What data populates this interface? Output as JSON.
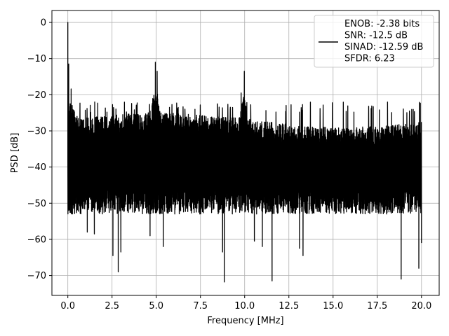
{
  "chart_data": {
    "type": "line",
    "title": "",
    "xlabel": "Frequency [MHz]",
    "ylabel": "PSD [dB]",
    "xlim": [
      -0.9,
      21.0
    ],
    "ylim": [
      -75.5,
      3.3
    ],
    "xticks": [
      0.0,
      2.5,
      5.0,
      7.5,
      10.0,
      12.5,
      15.0,
      17.5,
      20.0
    ],
    "xtick_labels": [
      "0.0",
      "2.5",
      "5.0",
      "7.5",
      "10.0",
      "12.5",
      "15.0",
      "17.5",
      "20.0"
    ],
    "yticks": [
      0,
      -10,
      -20,
      -30,
      -40,
      -50,
      -60,
      -70
    ],
    "ytick_labels": [
      "0",
      "−10",
      "−20",
      "−30",
      "−40",
      "−50",
      "−60",
      "−70"
    ],
    "grid": true,
    "legend": {
      "placement": "upper-right",
      "entries": [
        "ENOB: -2.38 bits",
        "SNR: -12.5 dB",
        "SINAD: -12.59 dB",
        "SFDR: 6.23"
      ]
    },
    "colors": {
      "line": "#000000",
      "grid": "#b0b0b0",
      "axes": "#000000"
    },
    "series": [
      {
        "style": "noise-floor",
        "x_range": [
          0.0,
          20.0
        ],
        "envelope_upper_approx": -22,
        "envelope_lower_approx": -52,
        "typical_range": [
          -45,
          -27
        ]
      }
    ],
    "peaks": [
      {
        "x": 0.0,
        "y": 0.0
      },
      {
        "x": 0.05,
        "y": -11.5
      },
      {
        "x": 4.95,
        "y": -11.0
      },
      {
        "x": 5.05,
        "y": -13.5
      },
      {
        "x": 9.98,
        "y": -13.5
      },
      {
        "x": 9.8,
        "y": -19.5
      }
    ],
    "dips": [
      {
        "x": 0.0,
        "y": -38.5
      },
      {
        "x": 0.35,
        "y": -49.5
      },
      {
        "x": 1.1,
        "y": -58.0
      },
      {
        "x": 1.5,
        "y": -58.5
      },
      {
        "x": 2.55,
        "y": -64.5
      },
      {
        "x": 2.85,
        "y": -69.0
      },
      {
        "x": 3.0,
        "y": -63.5
      },
      {
        "x": 4.65,
        "y": -59.0
      },
      {
        "x": 5.4,
        "y": -62.0
      },
      {
        "x": 8.85,
        "y": -71.8
      },
      {
        "x": 8.75,
        "y": -63.5
      },
      {
        "x": 10.55,
        "y": -60.5
      },
      {
        "x": 11.0,
        "y": -62.0
      },
      {
        "x": 11.55,
        "y": -71.5
      },
      {
        "x": 13.1,
        "y": -62.5
      },
      {
        "x": 13.3,
        "y": -64.5
      },
      {
        "x": 18.85,
        "y": -71.0
      },
      {
        "x": 19.85,
        "y": -68.0
      },
      {
        "x": 20.0,
        "y": -61.0
      }
    ]
  }
}
